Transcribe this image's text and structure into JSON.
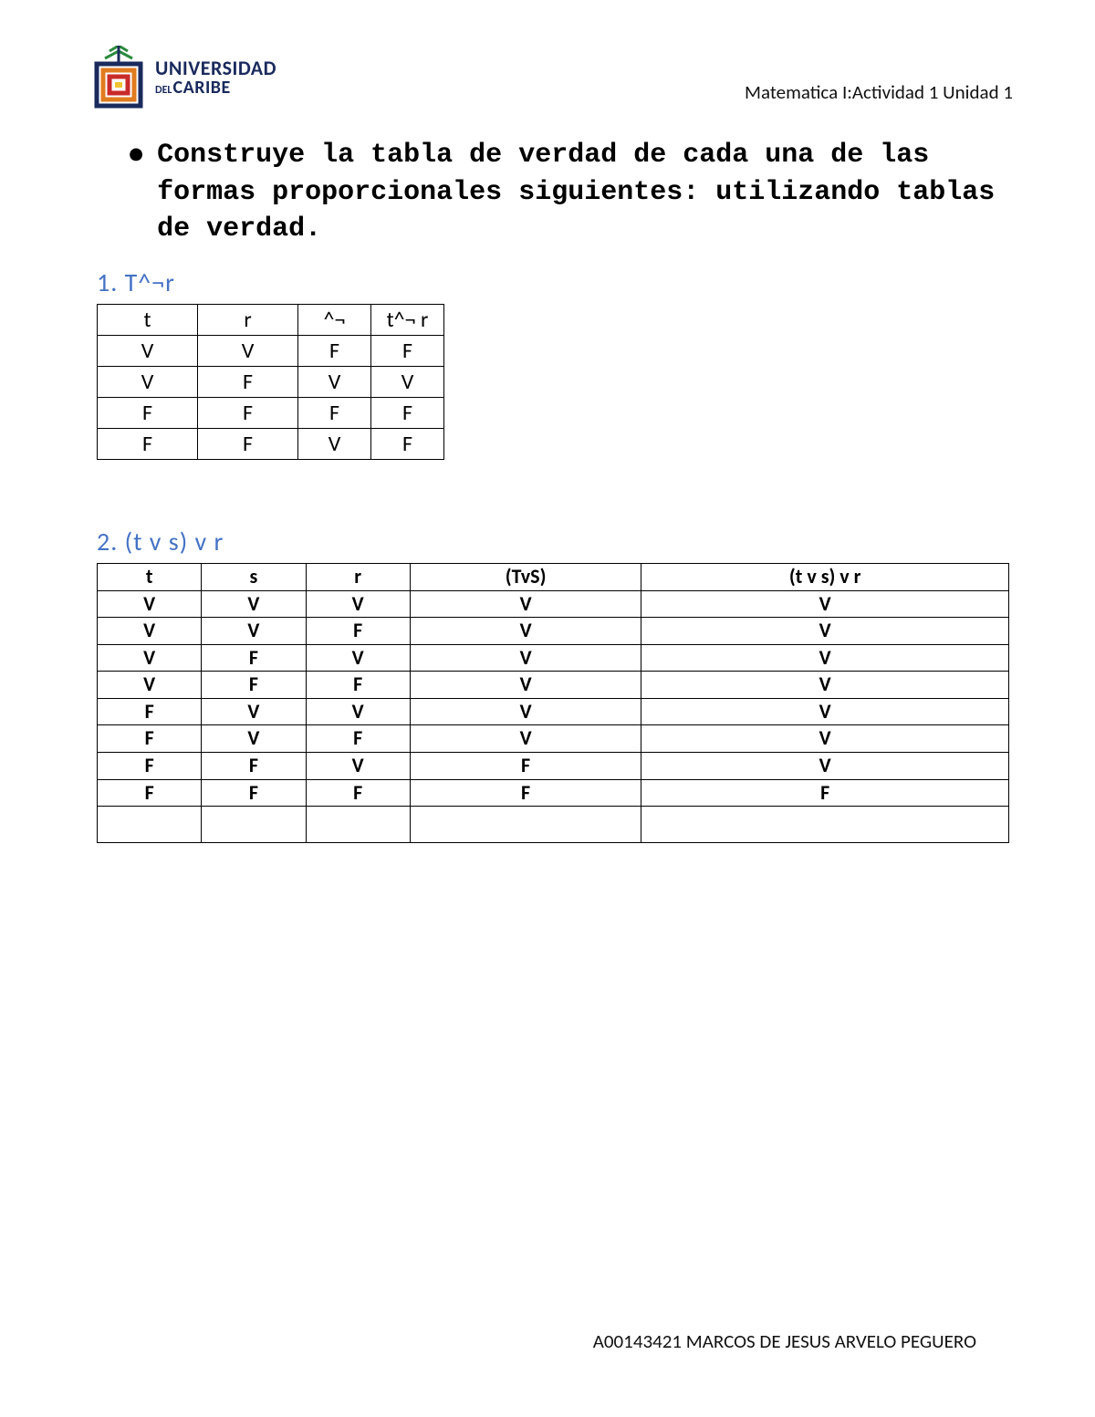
{
  "logo": {
    "line1": "UNIVERSIDAD",
    "line2_small": "DEL",
    "line2": "CARIBE",
    "colors": {
      "navy": "#1a2a5c",
      "green": "#2b8a3e",
      "orange": "#e07b1f",
      "red": "#c92a2a",
      "yellow": "#f4c430"
    }
  },
  "header": {
    "course": "Matematica I:Actividad 1 Unidad 1"
  },
  "instruction": "Construye la tabla de verdad de cada una de las formas proporcionales siguientes: utilizando tablas de verdad.",
  "section1": {
    "title": "1. T^¬r",
    "columns": [
      "t",
      "r",
      "^¬",
      "t^¬ r"
    ],
    "rows": [
      [
        "V",
        "V",
        "F",
        "F"
      ],
      [
        "V",
        "F",
        "V",
        "V"
      ],
      [
        "F",
        "F",
        "F",
        "F"
      ],
      [
        "F",
        "F",
        "V",
        "F"
      ]
    ]
  },
  "section2": {
    "title": "2. (t v s) v r",
    "columns": [
      "t",
      "s",
      "r",
      "(TvS)",
      "(t v s) v r"
    ],
    "rows": [
      [
        "V",
        "V",
        "V",
        "V",
        "V"
      ],
      [
        "V",
        "V",
        "F",
        "V",
        "V"
      ],
      [
        "V",
        "F",
        "V",
        "V",
        "V"
      ],
      [
        "V",
        "F",
        "F",
        "V",
        "V"
      ],
      [
        "F",
        "V",
        "V",
        "V",
        "V"
      ],
      [
        "F",
        "V",
        "F",
        "V",
        "V"
      ],
      [
        "F",
        "F",
        "V",
        "F",
        "V"
      ],
      [
        "F",
        "F",
        "F",
        "F",
        "F"
      ]
    ]
  },
  "footer": "A00143421 MARCOS DE JESUS ARVELO PEGUERO",
  "style": {
    "heading_color": "#4472c4",
    "text_color": "#000000",
    "border_color": "#000000",
    "background": "#ffffff"
  }
}
